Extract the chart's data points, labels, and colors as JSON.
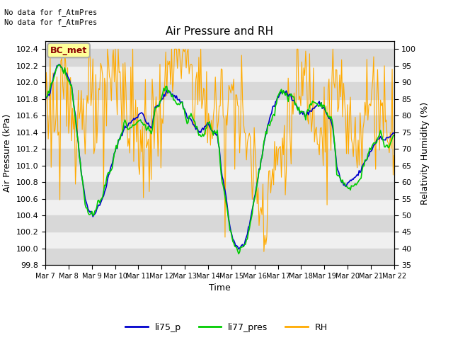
{
  "title": "Air Pressure and RH",
  "xlabel": "Time",
  "ylabel_left": "Air Pressure (kPa)",
  "ylabel_right": "Relativity Humidity (%)",
  "annotation_line1": "No data for f_AtmPres",
  "annotation_line2": "No data for f_AtmPres",
  "box_label": "BC_met",
  "ylim_left": [
    99.8,
    102.5
  ],
  "ylim_right": [
    35,
    100
  ],
  "yticks_left": [
    99.8,
    100.0,
    100.2,
    100.4,
    100.6,
    100.8,
    101.0,
    101.2,
    101.4,
    101.6,
    101.8,
    102.0,
    102.2,
    102.4
  ],
  "yticks_right": [
    35,
    40,
    45,
    50,
    55,
    60,
    65,
    70,
    75,
    80,
    85,
    90,
    95,
    100
  ],
  "xtick_labels": [
    "Mar 7",
    "Mar 8",
    "Mar 9",
    "Mar 10",
    "Mar 11",
    "Mar 12",
    "Mar 13",
    "Mar 14",
    "Mar 15",
    "Mar 16",
    "Mar 17",
    "Mar 18",
    "Mar 19",
    "Mar 20",
    "Mar 21",
    "Mar 22"
  ],
  "n_points": 360,
  "colors": {
    "li75_p": "#0000cc",
    "li77_pres": "#00cc00",
    "RH": "#ffaa00",
    "plot_bg": "#f0f0f0",
    "band_color": "#d8d8d8",
    "box_fill": "#ffff99",
    "box_edge": "#aaaaaa"
  },
  "legend": {
    "li75_p": "li75_p",
    "li77_pres": "li77_pres",
    "RH": "RH"
  }
}
